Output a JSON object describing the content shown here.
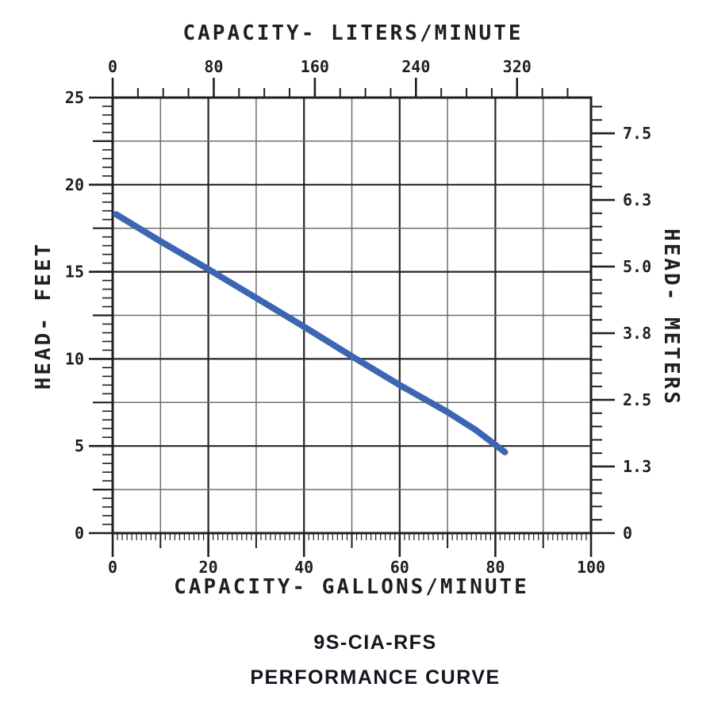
{
  "titles": {
    "model": "9S-CIA-RFS",
    "caption": "PERFORMANCE CURVE"
  },
  "chart_data": {
    "type": "line",
    "title": "9S-CIA-RFS PERFORMANCE CURVE",
    "grid": "on",
    "legend": "none",
    "axes": {
      "bottom": {
        "label": "CAPACITY- GALLONS/MINUTE",
        "min": 0,
        "max": 100,
        "labeled_ticks": [
          0,
          20,
          40,
          60,
          80,
          100
        ],
        "medium_tick_step": 10,
        "minor_tick_step": 1,
        "gridline_step": 10
      },
      "top": {
        "label": "CAPACITY- LITERS/MINUTE",
        "labeled_ticks": [
          0,
          80,
          160,
          240,
          320
        ],
        "minor_tick_step": 20,
        "last_minor_tick": 360,
        "liters_per_gallon": 3.78541
      },
      "left": {
        "label": "HEAD- FEET",
        "min": 0,
        "max": 25,
        "labeled_ticks": [
          0,
          5,
          10,
          15,
          20,
          25
        ],
        "medium_tick_step": 2.5,
        "minor_tick_step": 0.5,
        "gridline_step": 2.5
      },
      "right": {
        "label": "HEAD- METERS",
        "labeled_ticks": [
          "0",
          "1.3",
          "2.5",
          "3.8",
          "5.0",
          "6.3",
          "7.5"
        ],
        "max_labeled_value": 7.5,
        "minor_ticks_per_interval": 5,
        "top_label_feet_position": 22.95
      }
    },
    "series": [
      {
        "name": "head-vs-capacity-curve",
        "color": "#3c66b4",
        "stroke_width": 8,
        "points_gpm_feet": [
          [
            0.7,
            18.3
          ],
          [
            10,
            16.75
          ],
          [
            20,
            15.15
          ],
          [
            30,
            13.5
          ],
          [
            40,
            11.85
          ],
          [
            50,
            10.15
          ],
          [
            60,
            8.5
          ],
          [
            70,
            6.95
          ],
          [
            76,
            5.9
          ],
          [
            82,
            4.65
          ]
        ]
      }
    ],
    "ink_color": "#1f1f1f",
    "major_grid_color": "#262626",
    "minor_grid_color": "#6e6e6e"
  }
}
